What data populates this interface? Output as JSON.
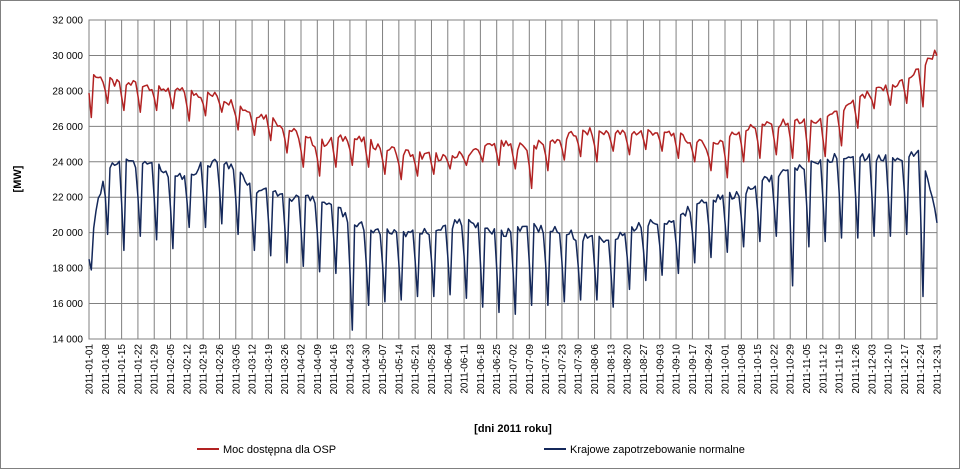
{
  "chart_data": {
    "type": "line",
    "title": "",
    "xlabel": "[dni 2011  roku]",
    "ylabel": "[MW]",
    "ylim": [
      14000,
      32000
    ],
    "yticks": [
      14000,
      16000,
      18000,
      20000,
      22000,
      24000,
      26000,
      28000,
      30000,
      32000
    ],
    "ytick_labels": [
      "14 000",
      "16 000",
      "18 000",
      "20 000",
      "22 000",
      "24 000",
      "26 000",
      "28 000",
      "30 000",
      "32 000"
    ],
    "x_start": "2011-01-01",
    "x_end": "2011-12-31",
    "xtick_labels": [
      "2011-01-01",
      "2011-01-08",
      "2011-01-15",
      "2011-01-22",
      "2011-01-29",
      "2011-02-05",
      "2011-02-12",
      "2011-02-19",
      "2011-02-26",
      "2011-03-05",
      "2011-03-12",
      "2011-03-19",
      "2011-03-26",
      "2011-04-02",
      "2011-04-09",
      "2011-04-16",
      "2011-04-23",
      "2011-04-30",
      "2011-05-07",
      "2011-05-14",
      "2011-05-21",
      "2011-05-28",
      "2011-06-04",
      "2011-06-11",
      "2011-06-18",
      "2011-06-25",
      "2011-07-02",
      "2011-07-09",
      "2011-07-16",
      "2011-07-23",
      "2011-07-30",
      "2011-08-06",
      "2011-08-13",
      "2011-08-20",
      "2011-08-27",
      "2011-09-03",
      "2011-09-10",
      "2011-09-17",
      "2011-09-24",
      "2011-10-01",
      "2011-10-08",
      "2011-10-15",
      "2011-10-22",
      "2011-10-29",
      "2011-11-05",
      "2011-11-12",
      "2011-11-19",
      "2011-11-26",
      "2011-12-03",
      "2011-12-10",
      "2011-12-17",
      "2011-12-24",
      "2011-12-31"
    ],
    "grid": true,
    "legend_position": "bottom",
    "series": [
      {
        "name": "Moc dostępna dla OSP",
        "color": "#b22222",
        "weekly_values": [
          29000,
          28600,
          28300,
          28500,
          28200,
          28100,
          27900,
          27800,
          27700,
          27200,
          26800,
          26500,
          26000,
          25400,
          25000,
          25200,
          25400,
          25100,
          24800,
          24600,
          24400,
          24300,
          24300,
          24400,
          24700,
          25000,
          24900,
          24800,
          25100,
          25300,
          25600,
          25700,
          25600,
          25600,
          25700,
          25700,
          25500,
          25100,
          24900,
          25300,
          25800,
          26000,
          26100,
          26300,
          26300,
          26200,
          26800,
          27400,
          27900,
          28200,
          28600,
          29200,
          30300
        ],
        "weekly_dips": [
          26500,
          27300,
          26900,
          26800,
          26900,
          27000,
          26300,
          26600,
          26800,
          25800,
          25500,
          25200,
          24500,
          23700,
          23200,
          23700,
          23800,
          23700,
          23300,
          23000,
          23200,
          23300,
          23600,
          23800,
          24000,
          23800,
          23600,
          22500,
          23500,
          24100,
          24300,
          24000,
          24600,
          24400,
          24700,
          24600,
          24200,
          24000,
          23500,
          23100,
          24000,
          24200,
          24400,
          24200,
          24000,
          24300,
          24900,
          25900,
          27000,
          27200,
          27300,
          27100,
          29600
        ]
      },
      {
        "name": "Krajowe zapotrzebowanie normalne",
        "color": "#14285a",
        "weekly_values": [
          19000,
          23800,
          23900,
          23900,
          23900,
          23300,
          23200,
          23800,
          24100,
          23500,
          22500,
          22400,
          22100,
          21900,
          21800,
          21500,
          20700,
          20300,
          20000,
          20000,
          20000,
          20100,
          20400,
          20600,
          20400,
          20000,
          20000,
          20300,
          20200,
          20200,
          19700,
          19700,
          19600,
          20100,
          20400,
          20600,
          20800,
          21400,
          21900,
          22000,
          22200,
          22700,
          23200,
          23500,
          23800,
          24100,
          24300,
          24200,
          24200,
          24200,
          24300,
          24600,
          21000
        ],
        "weekly_dips": [
          17900,
          19900,
          19000,
          19800,
          19600,
          19100,
          20300,
          20300,
          20500,
          19900,
          19000,
          18700,
          18300,
          18100,
          17800,
          17700,
          14500,
          15900,
          16100,
          16200,
          16400,
          16400,
          16500,
          16300,
          15800,
          15500,
          15400,
          15900,
          15900,
          16100,
          16200,
          16200,
          15800,
          16800,
          17300,
          17600,
          17700,
          18300,
          18600,
          18900,
          19200,
          19500,
          19800,
          17000,
          19200,
          19500,
          19700,
          19700,
          19800,
          19800,
          19900,
          16400,
          20000
        ]
      }
    ]
  }
}
